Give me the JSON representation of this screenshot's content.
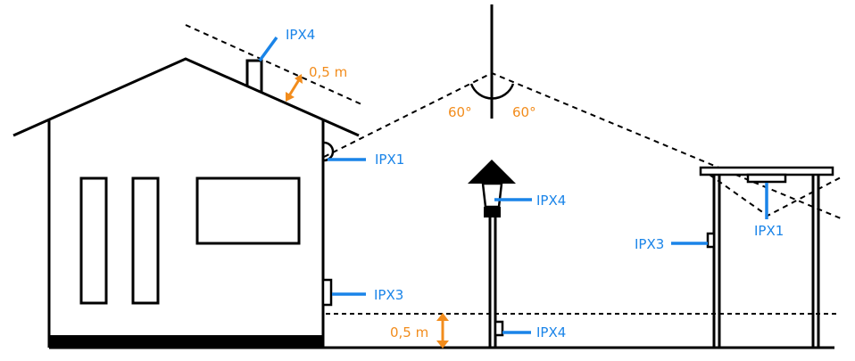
{
  "colors": {
    "ink": "#000000",
    "ip_label": "#1a84e8",
    "distance": "#f28c1c"
  },
  "labels": {
    "roof_rating": "IPX4",
    "roof_clearance": "0,5 m",
    "angle_left": "60°",
    "angle_right": "60°",
    "wall_light_rating": "IPX1",
    "lamp_post_head_rating": "IPX4",
    "wall_socket_rating": "IPX3",
    "ground_clearance": "0,5 m",
    "post_socket_rating": "IPX4",
    "carport_socket_rating": "IPX3",
    "carport_light_rating": "IPX1"
  }
}
